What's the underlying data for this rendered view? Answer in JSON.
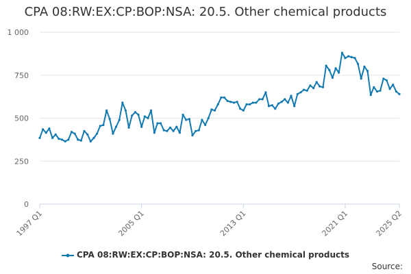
{
  "title": "CPA 08:RW:EX:CP:BOP:NSA: 20.5. Other chemical products",
  "source_label": "Source:",
  "colors": {
    "series": "#1179b0",
    "grid": "#e6e6e6",
    "axis_text": "#666666"
  },
  "chart_data": {
    "type": "line",
    "title": "CPA 08:RW:EX:CP:BOP:NSA: 20.5. Other chemical products",
    "xlabel": "",
    "ylabel": "",
    "ylim": [
      0,
      1000
    ],
    "y_ticks": [
      0,
      250,
      500,
      750,
      1000
    ],
    "y_tick_labels": [
      "0",
      "250",
      "500",
      "750",
      "1 000"
    ],
    "x_tick_labels": [
      "1997 Q1",
      "2005 Q1",
      "2013 Q1",
      "2021 Q1",
      "2025 Q2"
    ],
    "x_tick_positions": [
      0,
      96,
      192,
      288,
      339
    ],
    "grid": true,
    "legend_position": "bottom",
    "x_unit": "month index from 1997 Q1",
    "series": [
      {
        "name": "CPA 08:RW:EX:CP:BOP:NSA: 20.5. Other chemical products",
        "x": [
          0,
          3,
          6,
          9,
          12,
          15,
          18,
          21,
          24,
          27,
          30,
          33,
          36,
          39,
          42,
          45,
          48,
          51,
          54,
          57,
          60,
          63,
          66,
          69,
          72,
          75,
          78,
          81,
          84,
          87,
          90,
          93,
          96,
          99,
          102,
          105,
          108,
          111,
          114,
          117,
          120,
          123,
          126,
          129,
          132,
          135,
          138,
          141,
          144,
          147,
          150,
          153,
          156,
          159,
          162,
          165,
          168,
          171,
          174,
          177,
          180,
          183,
          186,
          189,
          192,
          195,
          198,
          201,
          204,
          207,
          210,
          213,
          216,
          219,
          222,
          225,
          228,
          231,
          234,
          237,
          240,
          243,
          246,
          249,
          252,
          255,
          258,
          261,
          264,
          267,
          270,
          273,
          276,
          279,
          282,
          285,
          288,
          291,
          294,
          297,
          300,
          303,
          306,
          309,
          312,
          315,
          318,
          321,
          324,
          327,
          330,
          333,
          336,
          339
        ],
        "y": [
          385,
          435,
          415,
          440,
          385,
          405,
          380,
          375,
          365,
          375,
          420,
          410,
          375,
          370,
          425,
          405,
          365,
          385,
          410,
          455,
          460,
          545,
          495,
          410,
          450,
          490,
          590,
          545,
          445,
          515,
          535,
          520,
          450,
          510,
          500,
          545,
          415,
          470,
          470,
          430,
          425,
          445,
          425,
          450,
          415,
          520,
          490,
          495,
          400,
          425,
          430,
          490,
          460,
          500,
          550,
          545,
          580,
          620,
          620,
          600,
          595,
          590,
          595,
          555,
          545,
          580,
          580,
          590,
          590,
          610,
          610,
          650,
          570,
          575,
          555,
          585,
          595,
          610,
          590,
          630,
          570,
          640,
          650,
          665,
          660,
          690,
          675,
          710,
          685,
          680,
          805,
          780,
          735,
          790,
          765,
          880,
          850,
          860,
          855,
          850,
          815,
          730,
          800,
          775,
          635,
          680,
          655,
          660,
          730,
          720,
          670,
          695,
          655,
          640
        ]
      }
    ]
  }
}
